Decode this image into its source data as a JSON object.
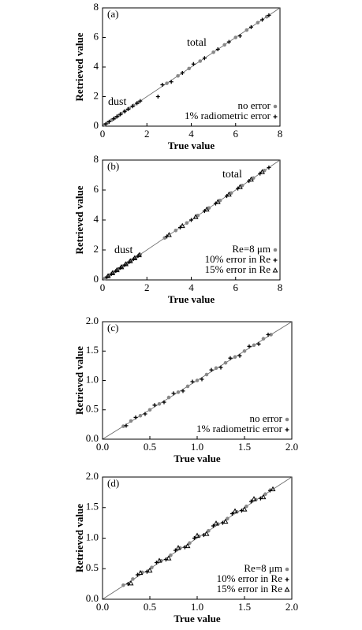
{
  "chart_data": [
    {
      "type": "scatter",
      "panel": "(a)",
      "xlabel": "True value",
      "ylabel": "Retrieved value",
      "xlim": [
        0,
        8
      ],
      "ylim": [
        0,
        8
      ],
      "xticks": [
        0,
        2,
        4,
        6,
        8
      ],
      "yticks": [
        0,
        2,
        4,
        6,
        8
      ],
      "annotations": [
        "dust",
        "total"
      ],
      "series": [
        {
          "name": "no error",
          "color": "#888888",
          "marker": "circle",
          "x": [
            0.1,
            0.25,
            0.4,
            0.55,
            0.7,
            0.85,
            1.0,
            1.2,
            1.4,
            1.6,
            2.9,
            3.4,
            3.9,
            4.4,
            5.0,
            5.5,
            6.0,
            6.5,
            7.0,
            7.4
          ],
          "values": [
            0.1,
            0.25,
            0.4,
            0.55,
            0.7,
            0.85,
            1.0,
            1.2,
            1.4,
            1.6,
            2.9,
            3.4,
            3.9,
            4.4,
            5.0,
            5.5,
            6.0,
            6.5,
            7.0,
            7.4
          ]
        },
        {
          "name": "1% radiometric error",
          "color": "#000000",
          "marker": "plus",
          "x": [
            0.15,
            0.3,
            0.5,
            0.65,
            0.8,
            1.0,
            1.15,
            1.35,
            1.55,
            1.7,
            2.5,
            2.7,
            3.1,
            3.6,
            4.1,
            4.6,
            5.2,
            5.7,
            6.2,
            6.7,
            7.2,
            7.5
          ],
          "values": [
            0.15,
            0.3,
            0.5,
            0.65,
            0.8,
            1.0,
            1.15,
            1.35,
            1.55,
            1.7,
            2.0,
            2.8,
            3.0,
            3.6,
            4.2,
            4.6,
            5.2,
            5.7,
            6.1,
            6.7,
            7.2,
            7.5
          ]
        }
      ]
    },
    {
      "type": "scatter",
      "panel": "(b)",
      "xlabel": "True value",
      "ylabel": "Retrieved value",
      "xlim": [
        0,
        8
      ],
      "ylim": [
        0,
        8
      ],
      "xticks": [
        0,
        2,
        4,
        6,
        8
      ],
      "yticks": [
        0,
        2,
        4,
        6,
        8
      ],
      "annotations": [
        "dust",
        "total"
      ],
      "series": [
        {
          "name": "Re=8 μm",
          "color": "#888888",
          "marker": "circle",
          "x": [
            0.1,
            0.3,
            0.5,
            0.7,
            0.9,
            1.1,
            1.3,
            1.5,
            1.7,
            2.8,
            3.3,
            3.8,
            4.3,
            4.8,
            5.3,
            5.8,
            6.3,
            6.8,
            7.3
          ],
          "values": [
            0.1,
            0.3,
            0.5,
            0.7,
            0.9,
            1.1,
            1.3,
            1.5,
            1.7,
            2.8,
            3.3,
            3.8,
            4.3,
            4.8,
            5.3,
            5.8,
            6.3,
            6.8,
            7.3
          ]
        },
        {
          "name": "10% error in Re",
          "color": "#000000",
          "marker": "plus",
          "x": [
            0.2,
            0.4,
            0.6,
            0.8,
            1.0,
            1.2,
            1.4,
            1.6,
            2.9,
            3.5,
            4.0,
            4.6,
            5.1,
            5.6,
            6.1,
            6.6,
            7.1,
            7.5
          ],
          "values": [
            0.2,
            0.4,
            0.6,
            0.8,
            1.0,
            1.2,
            1.4,
            1.6,
            2.9,
            3.5,
            4.0,
            4.6,
            5.1,
            5.6,
            6.1,
            6.6,
            7.1,
            7.5
          ]
        },
        {
          "name": "15% error in Re",
          "color": "#000000",
          "marker": "triangle",
          "x": [
            0.25,
            0.45,
            0.65,
            0.85,
            1.05,
            1.25,
            1.45,
            1.65,
            3.0,
            3.6,
            4.2,
            4.7,
            5.2,
            5.7,
            6.2,
            6.7,
            7.2
          ],
          "values": [
            0.25,
            0.45,
            0.65,
            0.85,
            1.05,
            1.25,
            1.45,
            1.65,
            3.0,
            3.6,
            4.2,
            4.7,
            5.2,
            5.7,
            6.2,
            6.7,
            7.2
          ]
        }
      ]
    },
    {
      "type": "scatter",
      "panel": "(c)",
      "xlabel": "True value",
      "ylabel": "Retrieved value",
      "xlim": [
        0,
        2
      ],
      "ylim": [
        0,
        2
      ],
      "xticks": [
        {
          "value": 0,
          "label": "0.0"
        },
        0.5,
        {
          "value": 1,
          "label": "1.0"
        },
        1.5,
        {
          "value": 2,
          "label": "2.0"
        }
      ],
      "yticks": [
        {
          "value": 0,
          "label": "0.0"
        },
        0.5,
        {
          "value": 1,
          "label": "1.0"
        },
        1.5,
        {
          "value": 2,
          "label": "2.0"
        }
      ],
      "series": [
        {
          "name": "no error",
          "color": "#888888",
          "marker": "circle",
          "x": [
            0.22,
            0.3,
            0.4,
            0.5,
            0.6,
            0.7,
            0.8,
            0.9,
            1.0,
            1.1,
            1.2,
            1.3,
            1.4,
            1.5,
            1.6,
            1.7,
            1.78
          ],
          "values": [
            0.22,
            0.31,
            0.4,
            0.5,
            0.6,
            0.71,
            0.8,
            0.9,
            1.0,
            1.1,
            1.21,
            1.3,
            1.4,
            1.5,
            1.6,
            1.71,
            1.78
          ]
        },
        {
          "name": "1% radiometric error",
          "color": "#000000",
          "marker": "plus",
          "x": [
            0.25,
            0.35,
            0.45,
            0.55,
            0.65,
            0.75,
            0.85,
            0.95,
            1.05,
            1.15,
            1.25,
            1.35,
            1.45,
            1.55,
            1.65,
            1.75
          ],
          "values": [
            0.23,
            0.37,
            0.43,
            0.58,
            0.63,
            0.78,
            0.82,
            0.98,
            1.02,
            1.18,
            1.22,
            1.38,
            1.42,
            1.58,
            1.62,
            1.78
          ]
        }
      ]
    },
    {
      "type": "scatter",
      "panel": "(d)",
      "xlabel": "True value",
      "ylabel": "Retrieved value",
      "xlim": [
        0,
        2
      ],
      "ylim": [
        0,
        2
      ],
      "xticks": [
        {
          "value": 0,
          "label": "0.0"
        },
        0.5,
        {
          "value": 1,
          "label": "1.0"
        },
        1.5,
        {
          "value": 2,
          "label": "2.0"
        }
      ],
      "yticks": [
        {
          "value": 0,
          "label": "0.0"
        },
        0.5,
        {
          "value": 1,
          "label": "1.0"
        },
        1.5,
        {
          "value": 2,
          "label": "2.0"
        }
      ],
      "series": [
        {
          "name": "Re=8 μm",
          "color": "#888888",
          "marker": "circle",
          "x": [
            0.22,
            0.32,
            0.42,
            0.52,
            0.62,
            0.72,
            0.82,
            0.92,
            1.02,
            1.12,
            1.22,
            1.32,
            1.42,
            1.52,
            1.62,
            1.72
          ],
          "values": [
            0.23,
            0.33,
            0.44,
            0.52,
            0.63,
            0.72,
            0.84,
            0.92,
            1.03,
            1.12,
            1.23,
            1.32,
            1.43,
            1.52,
            1.63,
            1.72
          ]
        },
        {
          "name": "10% error in Re",
          "color": "#000000",
          "marker": "plus",
          "x": [
            0.27,
            0.37,
            0.47,
            0.57,
            0.67,
            0.77,
            0.87,
            0.97,
            1.07,
            1.17,
            1.27,
            1.37,
            1.47,
            1.57,
            1.67,
            1.77
          ],
          "values": [
            0.25,
            0.4,
            0.45,
            0.6,
            0.65,
            0.8,
            0.85,
            1.0,
            1.05,
            1.2,
            1.25,
            1.4,
            1.45,
            1.6,
            1.65,
            1.78
          ]
        },
        {
          "name": "15% error in Re",
          "color": "#000000",
          "marker": "triangle",
          "x": [
            0.3,
            0.4,
            0.5,
            0.6,
            0.7,
            0.8,
            0.9,
            1.0,
            1.1,
            1.2,
            1.3,
            1.4,
            1.5,
            1.6,
            1.7,
            1.8
          ],
          "values": [
            0.26,
            0.43,
            0.47,
            0.63,
            0.67,
            0.84,
            0.87,
            1.04,
            1.07,
            1.24,
            1.27,
            1.44,
            1.47,
            1.64,
            1.67,
            1.8
          ]
        }
      ]
    }
  ]
}
